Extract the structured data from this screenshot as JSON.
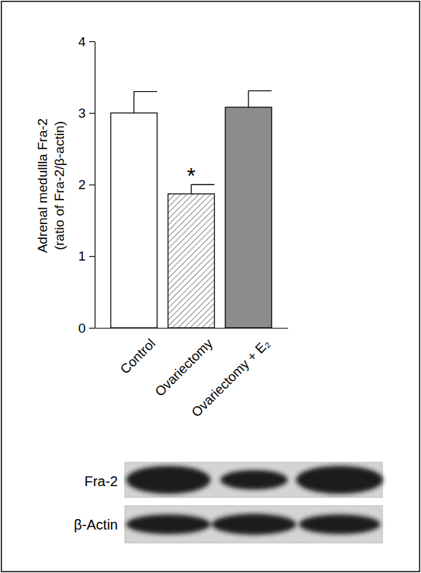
{
  "chart_data": {
    "type": "bar",
    "y_label": [
      "Adrenal medullla Fra-2",
      "(ratio of Fra-2/β-actin)"
    ],
    "categories": [
      "Control",
      "Ovariectomy",
      "Ovariectomy + E₂"
    ],
    "values": [
      3.0,
      1.87,
      3.08
    ],
    "errors": [
      0.3,
      0.13,
      0.23
    ],
    "colors": [
      "#ffffff",
      "#ffffff",
      "#8c8c8c"
    ],
    "significance": [
      null,
      "*",
      null
    ],
    "ylim": [
      0,
      4
    ],
    "yticks": [
      0,
      1,
      2,
      3,
      4
    ],
    "blot_rows": [
      "Fra-2",
      "β-Actin"
    ]
  }
}
